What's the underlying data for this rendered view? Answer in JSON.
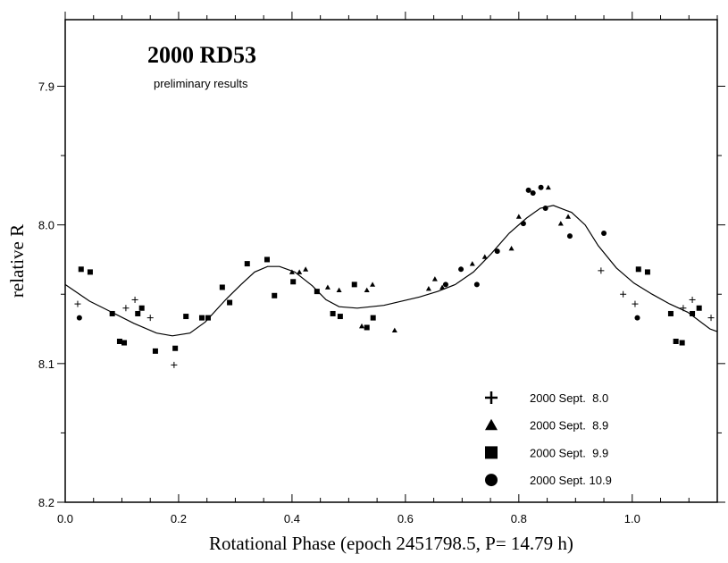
{
  "chart_data": {
    "type": "scatter",
    "title": "2000 RD53",
    "subtitle": "preliminary results",
    "xlabel": "Rotational Phase (epoch 2451798.5, P= 14.79 h)",
    "ylabel": "relative R",
    "xlim": [
      0.0,
      1.15
    ],
    "ylim": [
      7.852,
      8.2
    ],
    "y_inverted": true,
    "x_ticks": [
      0.0,
      0.2,
      0.4,
      0.6,
      0.8,
      1.0
    ],
    "x_tick_labels": [
      "0.0",
      "0.2",
      "0.4",
      "0.6",
      "0.8",
      "1.0"
    ],
    "x_minor_step": 0.05,
    "y_ticks": [
      7.9,
      8.0,
      8.1,
      8.2
    ],
    "y_tick_labels": [
      "7.9",
      "8.0",
      "8.1",
      "8.2"
    ],
    "y_minor_step": 0.05,
    "grid": false,
    "legend_position": "bottom-right",
    "series": [
      {
        "name": "2000 Sept.  8.0",
        "marker": "plus",
        "x": [
          0.022,
          0.107,
          0.123,
          0.15,
          0.192,
          0.945,
          0.984,
          1.005,
          1.09,
          1.106,
          1.139
        ],
        "y": [
          8.057,
          8.06,
          8.054,
          8.067,
          8.101,
          8.033,
          8.05,
          8.057,
          8.06,
          8.054,
          8.067
        ]
      },
      {
        "name": "2000 Sept.  8.9",
        "marker": "triangle",
        "x": [
          0.4,
          0.413,
          0.424,
          0.463,
          0.483,
          0.542,
          0.532,
          0.523,
          0.581,
          0.641,
          0.652,
          0.665,
          0.718,
          0.74,
          0.787,
          0.8,
          0.852,
          0.874,
          0.887
        ],
        "y": [
          8.034,
          8.034,
          8.032,
          8.045,
          8.047,
          8.043,
          8.047,
          8.073,
          8.076,
          8.046,
          8.039,
          8.045,
          8.028,
          8.023,
          8.017,
          7.994,
          7.973,
          7.999,
          7.994
        ]
      },
      {
        "name": "2000 Sept.  9.9",
        "marker": "square",
        "x": [
          0.028,
          0.044,
          0.083,
          0.096,
          0.104,
          0.128,
          0.135,
          0.159,
          0.194,
          0.213,
          0.241,
          0.252,
          0.277,
          0.29,
          0.321,
          0.356,
          0.369,
          0.402,
          0.444,
          0.472,
          0.485,
          0.51,
          0.532,
          0.543,
          1.011,
          1.027,
          1.068,
          1.077,
          1.088,
          1.106,
          1.118
        ],
        "y": [
          8.032,
          8.034,
          8.064,
          8.084,
          8.085,
          8.064,
          8.06,
          8.091,
          8.089,
          8.066,
          8.067,
          8.067,
          8.045,
          8.056,
          8.028,
          8.025,
          8.051,
          8.041,
          8.048,
          8.064,
          8.066,
          8.043,
          8.074,
          8.067,
          8.032,
          8.034,
          8.064,
          8.084,
          8.085,
          8.064,
          8.06
        ]
      },
      {
        "name": "2000 Sept. 10.9",
        "marker": "circle",
        "x": [
          0.025,
          0.671,
          0.698,
          0.726,
          0.762,
          0.808,
          0.817,
          0.825,
          0.839,
          0.847,
          0.89,
          0.95,
          1.009
        ],
        "y": [
          8.067,
          8.043,
          8.032,
          8.043,
          8.019,
          7.999,
          7.975,
          7.977,
          7.973,
          7.988,
          8.008,
          8.006,
          8.067
        ]
      }
    ],
    "fit_curve": {
      "x": [
        0.0,
        0.043,
        0.082,
        0.121,
        0.161,
        0.189,
        0.22,
        0.247,
        0.283,
        0.31,
        0.334,
        0.357,
        0.378,
        0.405,
        0.436,
        0.46,
        0.483,
        0.515,
        0.562,
        0.625,
        0.657,
        0.688,
        0.72,
        0.751,
        0.783,
        0.814,
        0.838,
        0.861,
        0.893,
        0.917,
        0.94,
        0.972,
        1.003,
        1.035,
        1.066,
        1.098,
        1.137,
        1.15
      ],
      "y": [
        8.043,
        8.055,
        8.063,
        8.071,
        8.078,
        8.08,
        8.078,
        8.07,
        8.054,
        8.043,
        8.034,
        8.03,
        8.03,
        8.034,
        8.044,
        8.054,
        8.059,
        8.06,
        8.058,
        8.052,
        8.048,
        8.043,
        8.034,
        8.021,
        8.006,
        7.995,
        7.988,
        7.986,
        7.991,
        8.0,
        8.015,
        8.031,
        8.042,
        8.05,
        8.057,
        8.063,
        8.075,
        8.077
      ]
    }
  }
}
